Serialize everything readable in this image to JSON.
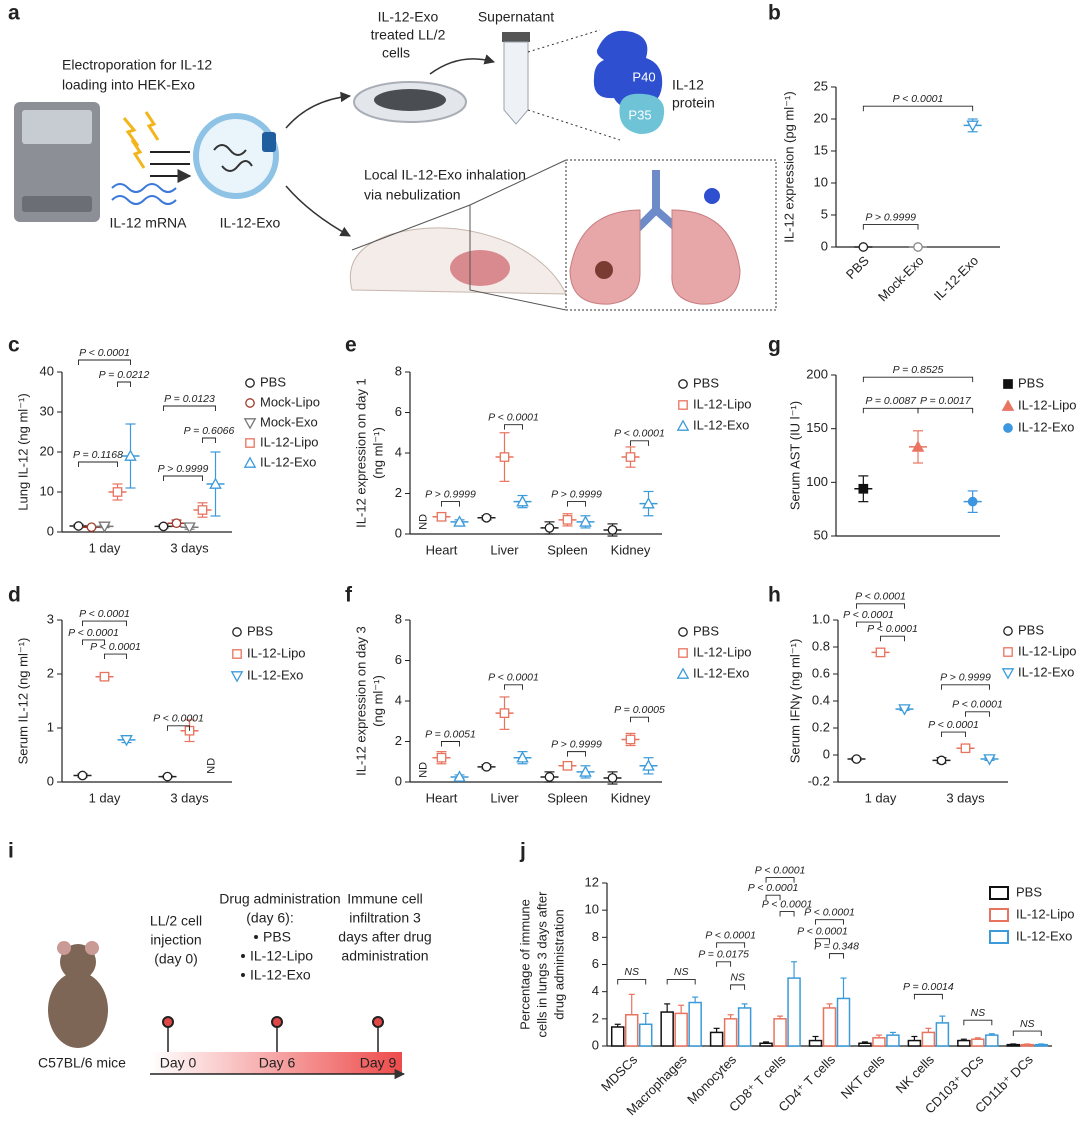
{
  "diagram_a": {
    "panel": "a",
    "electroporation": [
      "Electroporation for IL-12",
      "loading into HEK-Exo"
    ],
    "mrna": "IL-12 mRNA",
    "exo": "IL-12-Exo",
    "treated_cells": [
      "IL-12-Exo",
      "treated LL/2",
      "cells"
    ],
    "supernatant": "Supernatant",
    "p40": "P40",
    "p35": "P35",
    "protein": [
      "IL-12",
      "protein"
    ],
    "inhalation": [
      "Local IL-12-Exo inhalation",
      "via nebulization"
    ]
  },
  "diagram_i": {
    "panel": "i",
    "injection": [
      "LL/2 cell",
      "injection",
      "(day 0)"
    ],
    "drug": [
      "Drug administration",
      "(day 6):"
    ],
    "groups": [
      "PBS",
      "IL-12-Lipo",
      "IL-12-Exo"
    ],
    "infiltration": [
      "Immune cell",
      "infiltration 3",
      "days after drug",
      "administration"
    ],
    "mouse": "C57BL/6 mice",
    "timeline": [
      "Day 0",
      "Day 6",
      "Day 9"
    ]
  },
  "chart_data": [
    {
      "type": "dot",
      "panel": "b",
      "ylabel": [
        "IL-12 expression (pg ml⁻¹)"
      ],
      "categories": [
        "PBS",
        "Mock-Exo",
        "IL-12-Exo"
      ],
      "series": [
        {
          "color": "#222222",
          "marker": "circle",
          "values": [
            0,
            null,
            null
          ]
        },
        {
          "color": "#888888",
          "marker": "circle",
          "values": [
            null,
            0,
            null
          ]
        },
        {
          "color": "#3b9ad9",
          "marker": "triangle-down",
          "values": [
            null,
            null,
            19
          ],
          "errors": [
            null,
            null,
            1
          ]
        }
      ],
      "ylim": [
        0,
        25
      ],
      "yticks": [
        0,
        5,
        10,
        15,
        20,
        25
      ],
      "annotations": [
        "P < 0.0001",
        "P > 0.9999"
      ]
    },
    {
      "type": "dot",
      "panel": "c",
      "ylabel": [
        "Lung IL-12 (ng ml⁻¹)"
      ],
      "categories": [
        "1 day",
        "3 days"
      ],
      "series": [
        {
          "name": "PBS",
          "color": "#222222",
          "marker": "circle",
          "values": [
            1.5,
            1.4
          ],
          "errors": [
            0.4,
            0.4
          ]
        },
        {
          "name": "Mock-Lipo",
          "color": "#a23b2c",
          "marker": "circle",
          "values": [
            1.2,
            2.2
          ],
          "errors": [
            0.2,
            0.8
          ]
        },
        {
          "name": "Mock-Exo",
          "color": "#777777",
          "marker": "triangle-down",
          "values": [
            1.4,
            1.2
          ],
          "errors": [
            0.3,
            0.5
          ]
        },
        {
          "name": "IL-12-Lipo",
          "color": "#e8735e",
          "marker": "square",
          "values": [
            10,
            5.5
          ],
          "errors": [
            2,
            1.8
          ]
        },
        {
          "name": "IL-12-Exo",
          "color": "#3b9ad9",
          "marker": "triangle-up",
          "values": [
            19,
            12
          ],
          "errors": [
            8,
            8
          ]
        }
      ],
      "ylim": [
        0,
        40
      ],
      "yticks": [
        0,
        10,
        20,
        30,
        40
      ],
      "annotations": [
        "P < 0.0001",
        "P = 0.0212",
        "P = 0.1168",
        "P = 0.0123",
        "P = 0.6066",
        "P > 0.9999"
      ]
    },
    {
      "type": "dot",
      "panel": "d",
      "ylabel": [
        "Serum IL-12 (ng ml⁻¹)"
      ],
      "categories": [
        "1 day",
        "3 days"
      ],
      "series": [
        {
          "name": "PBS",
          "color": "#222222",
          "marker": "circle",
          "values": [
            0.12,
            0.1
          ],
          "errors": [
            0.03,
            0.02
          ]
        },
        {
          "name": "IL-12-Lipo",
          "color": "#e8735e",
          "marker": "square",
          "values": [
            1.95,
            0.95
          ],
          "errors": [
            0.05,
            0.2
          ]
        },
        {
          "name": "IL-12-Exo",
          "color": "#3b9ad9",
          "marker": "triangle-down",
          "values": [
            0.78,
            null
          ],
          "errors": [
            0.05,
            null
          ]
        }
      ],
      "ylim": [
        0,
        3
      ],
      "yticks": [
        0,
        1,
        2,
        3
      ],
      "annotations": [
        "P < 0.0001",
        "P < 0.0001",
        "P < 0.0001",
        "P < 0.0001",
        "ND"
      ]
    },
    {
      "type": "dot",
      "panel": "e",
      "ylabel": [
        "IL-12 expression on day 1",
        "(ng ml⁻¹)"
      ],
      "categories": [
        "Heart",
        "Liver",
        "Spleen",
        "Kidney"
      ],
      "series": [
        {
          "name": "PBS",
          "color": "#222222",
          "marker": "circle",
          "values": [
            null,
            0.8,
            0.3,
            0.2
          ],
          "errors": [
            null,
            0.1,
            0.3,
            0.3
          ]
        },
        {
          "name": "IL-12-Lipo",
          "color": "#e8735e",
          "marker": "square",
          "values": [
            0.85,
            3.8,
            0.7,
            3.8
          ],
          "errors": [
            0.2,
            1.2,
            0.3,
            0.5
          ]
        },
        {
          "name": "IL-12-Exo",
          "color": "#3b9ad9",
          "marker": "triangle-up",
          "values": [
            0.6,
            1.6,
            0.6,
            1.5
          ],
          "errors": [
            0.1,
            0.3,
            0.3,
            0.6
          ]
        }
      ],
      "ylim": [
        0,
        8
      ],
      "yticks": [
        0,
        2,
        4,
        6,
        8
      ],
      "annotations": [
        "ND",
        "P > 0.9999",
        "P < 0.0001",
        "P > 0.9999",
        "P < 0.0001"
      ]
    },
    {
      "type": "dot",
      "panel": "f",
      "ylabel": [
        "IL-12 expression on day 3",
        "(ng ml⁻¹)"
      ],
      "categories": [
        "Heart",
        "Liver",
        "Spleen",
        "Kidney"
      ],
      "series": [
        {
          "name": "PBS",
          "color": "#222222",
          "marker": "circle",
          "values": [
            null,
            0.75,
            0.25,
            0.2
          ],
          "errors": [
            null,
            0.1,
            0.25,
            0.3
          ]
        },
        {
          "name": "IL-12-Lipo",
          "color": "#e8735e",
          "marker": "square",
          "values": [
            1.2,
            3.4,
            0.8,
            2.1
          ],
          "errors": [
            0.3,
            0.8,
            0.2,
            0.3
          ]
        },
        {
          "name": "IL-12-Exo",
          "color": "#3b9ad9",
          "marker": "triangle-up",
          "values": [
            0.25,
            1.2,
            0.5,
            0.8
          ],
          "errors": [
            0.1,
            0.3,
            0.3,
            0.4
          ]
        }
      ],
      "ylim": [
        0,
        8
      ],
      "yticks": [
        0,
        2,
        4,
        6,
        8
      ],
      "annotations": [
        "ND",
        "P = 0.0051",
        "P < 0.0001",
        "P > 0.9999",
        "P = 0.0005"
      ]
    },
    {
      "type": "dot",
      "panel": "g",
      "ylabel": [
        "Serum AST (IU l⁻¹)"
      ],
      "categories": [
        null,
        null,
        null
      ],
      "series": [
        {
          "name": "PBS",
          "color": "#111111",
          "marker": "square",
          "filled": true,
          "values": [
            94,
            null,
            null
          ],
          "errors": [
            12,
            null,
            null
          ]
        },
        {
          "name": "IL-12-Lipo",
          "color": "#ea7462",
          "marker": "triangle-up",
          "filled": true,
          "values": [
            null,
            133,
            null
          ],
          "errors": [
            null,
            15,
            null
          ]
        },
        {
          "name": "IL-12-Exo",
          "color": "#3d96e0",
          "marker": "circle",
          "filled": true,
          "values": [
            null,
            null,
            82
          ],
          "errors": [
            null,
            null,
            10
          ]
        }
      ],
      "ylim": [
        50,
        200
      ],
      "yticks": [
        50,
        100,
        150,
        200
      ],
      "annotations": [
        "P = 0.8525",
        "P = 0.0087",
        "P = 0.0017"
      ]
    },
    {
      "type": "dot",
      "panel": "h",
      "ylabel": [
        "Serum IFNγ (ng ml⁻¹)"
      ],
      "categories": [
        "1 day",
        "3 days"
      ],
      "series": [
        {
          "name": "PBS",
          "color": "#222222",
          "marker": "circle",
          "values": [
            -0.03,
            -0.04
          ],
          "errors": [
            0.01,
            0.02
          ]
        },
        {
          "name": "IL-12-Lipo",
          "color": "#e8735e",
          "marker": "square",
          "values": [
            0.76,
            0.05
          ],
          "errors": [
            0.03,
            0.02
          ]
        },
        {
          "name": "IL-12-Exo",
          "color": "#3b9ad9",
          "marker": "triangle-down",
          "values": [
            0.34,
            -0.03
          ],
          "errors": [
            0.01,
            0.01
          ]
        }
      ],
      "ylim": [
        -0.2,
        1.0
      ],
      "yticks": [
        -0.2,
        0,
        0.2,
        0.4,
        0.6,
        0.8,
        {
          "value": 1,
          "label": "1.0"
        }
      ],
      "annotations": [
        "P < 0.0001",
        "P < 0.0001",
        "P < 0.0001",
        "P > 0.9999",
        "P < 0.0001",
        "P < 0.0001"
      ]
    },
    {
      "type": "bar",
      "panel": "j",
      "ylabel": [
        "Percentage of immune",
        "cells in lungs 3 days after",
        "drug administration"
      ],
      "categories": [
        "MDSCs",
        "Macrophages",
        "Monocytes",
        "CD8⁺ T cells",
        "CD4⁺ T cells",
        "NKT cells",
        "NK cells",
        "CD103⁺ DCs",
        "CD11b⁺ DCs"
      ],
      "series": [
        {
          "name": "PBS",
          "color": "#111111",
          "values": [
            1.4,
            2.5,
            1.0,
            0.2,
            0.4,
            0.2,
            0.4,
            0.4,
            0.1
          ],
          "errors": [
            0.2,
            0.6,
            0.3,
            0.1,
            0.3,
            0.1,
            0.3,
            0.1,
            0.05
          ]
        },
        {
          "name": "IL-12-Lipo",
          "color": "#e8735e",
          "values": [
            2.3,
            2.4,
            2.0,
            2.0,
            2.8,
            0.6,
            1.0,
            0.5,
            0.1
          ],
          "errors": [
            1.5,
            0.6,
            0.3,
            0.2,
            0.3,
            0.2,
            0.3,
            0.1,
            0.05
          ]
        },
        {
          "name": "IL-12-Exo",
          "color": "#3b9ad9",
          "values": [
            1.6,
            3.2,
            2.8,
            5.0,
            3.5,
            0.8,
            1.7,
            0.8,
            0.1
          ],
          "errors": [
            0.8,
            0.4,
            0.3,
            1.2,
            1.5,
            0.2,
            0.5,
            0.1,
            0.05
          ]
        }
      ],
      "ylim": [
        0,
        12
      ],
      "yticks": [
        0,
        2,
        4,
        6,
        8,
        10,
        12
      ],
      "annotations": [
        "NS",
        "NS",
        "P < 0.0001",
        "P = 0.0175",
        "NS",
        "P < 0.0001",
        "P < 0.0001",
        "P < 0.0001",
        "P < 0.0001",
        "P < 0.0001",
        "P = 0.348",
        "P = 0.0014",
        "NS",
        "NS"
      ]
    }
  ]
}
